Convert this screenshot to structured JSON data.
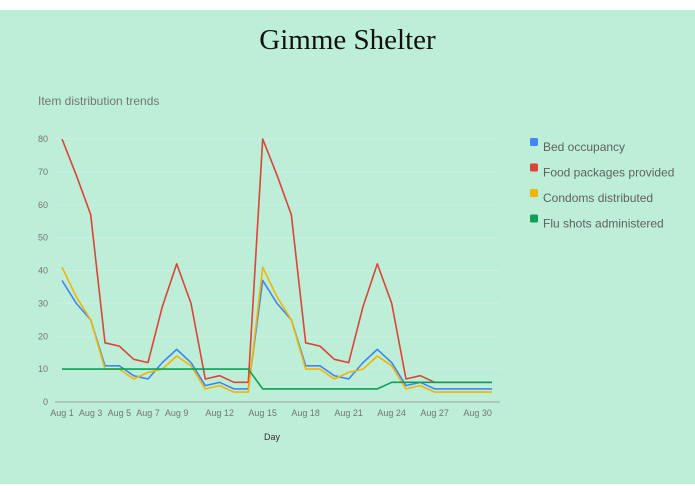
{
  "page": {
    "title": "Gimme Shelter"
  },
  "chart_data": {
    "type": "line",
    "title": "Item distribution trends",
    "xlabel": "Day",
    "ylabel": "",
    "ylim": [
      0,
      80
    ],
    "yticks": [
      0,
      10,
      20,
      30,
      40,
      50,
      60,
      70,
      80
    ],
    "grid": true,
    "legend": "right",
    "x": [
      "Aug 1",
      "Aug 2",
      "Aug 3",
      "Aug 4",
      "Aug 5",
      "Aug 6",
      "Aug 7",
      "Aug 8",
      "Aug 9",
      "Aug 10",
      "Aug 11",
      "Aug 12",
      "Aug 13",
      "Aug 14",
      "Aug 15",
      "Aug 16",
      "Aug 17",
      "Aug 18",
      "Aug 19",
      "Aug 20",
      "Aug 21",
      "Aug 22",
      "Aug 23",
      "Aug 24",
      "Aug 25",
      "Aug 26",
      "Aug 27",
      "Aug 28",
      "Aug 29",
      "Aug 30",
      "Aug 31"
    ],
    "xtick_labels": [
      "Aug 1",
      "Aug 3",
      "Aug 5",
      "Aug 7",
      "Aug 9",
      "Aug 12",
      "Aug 15",
      "Aug 18",
      "Aug 21",
      "Aug 24",
      "Aug 27",
      "Aug 30"
    ],
    "series": [
      {
        "name": "Bed occupancy",
        "color": "#4285f4",
        "values": [
          37,
          30,
          25,
          11,
          11,
          8,
          7,
          12,
          16,
          12,
          5,
          6,
          4,
          4,
          37,
          30,
          25,
          11,
          11,
          8,
          7,
          12,
          16,
          12,
          5,
          6,
          4,
          4,
          4,
          4,
          4
        ]
      },
      {
        "name": "Food packages provided",
        "color": "#db4437",
        "values": [
          80,
          69,
          57,
          18,
          17,
          13,
          12,
          29,
          42,
          30,
          7,
          8,
          6,
          6,
          80,
          69,
          57,
          18,
          17,
          13,
          12,
          29,
          42,
          30,
          7,
          8,
          6,
          6,
          6,
          6,
          6
        ]
      },
      {
        "name": "Condoms distributed",
        "color": "#f4b400",
        "values": [
          41,
          32,
          25,
          10,
          10,
          7,
          9,
          10,
          14,
          11,
          4,
          5,
          3,
          3,
          41,
          32,
          25,
          10,
          10,
          7,
          9,
          10,
          14,
          11,
          4,
          5,
          3,
          3,
          3,
          3,
          3
        ]
      },
      {
        "name": "Flu shots administered",
        "color": "#0f9d58",
        "values": [
          10,
          10,
          10,
          10,
          10,
          10,
          10,
          10,
          10,
          10,
          10,
          10,
          10,
          10,
          4,
          4,
          4,
          4,
          4,
          4,
          4,
          4,
          4,
          6,
          6,
          6,
          6,
          6,
          6,
          6,
          6
        ]
      }
    ]
  }
}
